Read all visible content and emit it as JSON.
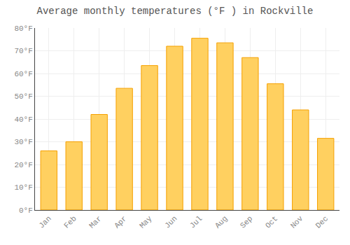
{
  "chart_data": {
    "type": "bar",
    "title": "Average monthly temperatures (°F ) in Rockville",
    "categories": [
      "Jan",
      "Feb",
      "Mar",
      "Apr",
      "May",
      "Jun",
      "Jul",
      "Aug",
      "Sep",
      "Oct",
      "Nov",
      "Dec"
    ],
    "values": [
      26,
      30,
      42,
      53.5,
      63.5,
      72,
      75.5,
      73.5,
      67,
      55.5,
      44,
      31.5
    ],
    "color": "#FFD060",
    "ylim": [
      0,
      80
    ],
    "yticks": [
      {
        "value": 0,
        "label": "0°F"
      },
      {
        "value": 10,
        "label": "10°F"
      },
      {
        "value": 20,
        "label": "20°F"
      },
      {
        "value": 30,
        "label": "30°F"
      },
      {
        "value": 40,
        "label": "40°F"
      },
      {
        "value": 50,
        "label": "50°F"
      },
      {
        "value": 60,
        "label": "60°F"
      },
      {
        "value": 70,
        "label": "70°F"
      },
      {
        "value": 80,
        "label": "80°F"
      }
    ],
    "grid": true
  }
}
